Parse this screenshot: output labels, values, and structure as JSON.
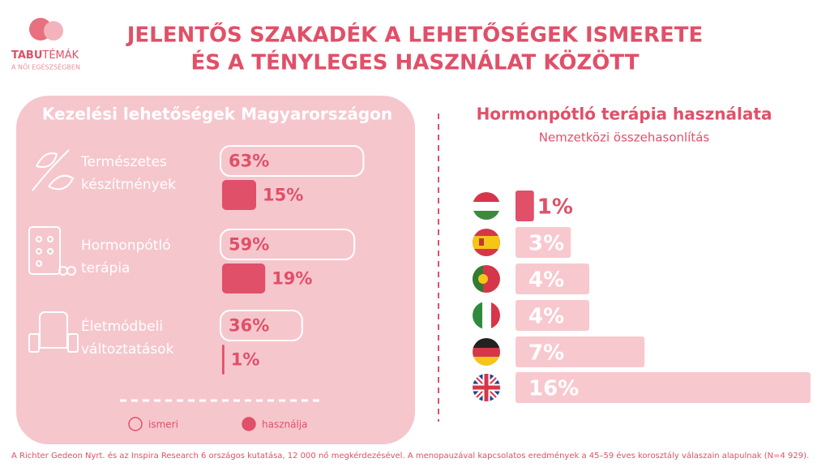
{
  "logo": {
    "brand_bold": "TABU",
    "brand_light": "TÉMÁK",
    "tagline": "A NŐI EGÉSZSÉGBEN"
  },
  "title": [
    "JELENTŐS SZAKADÉK A LEHETŐSÉGEK ISMERETE",
    "ÉS A TÉNYLEGES HASZNÁLAT KÖZÖTT"
  ],
  "chart_data": [
    {
      "type": "bar",
      "orientation": "horizontal",
      "title": "Kezelési lehetőségek Magyarországon",
      "categories": [
        "Természetes készítmények",
        "Hormonpótló terápia",
        "Életmódbeli változtatások"
      ],
      "series": [
        {
          "name": "ismeri",
          "color": "#ffffff",
          "values": [
            63,
            59,
            36
          ],
          "value_labels": [
            "63%",
            "59%",
            "36%"
          ]
        },
        {
          "name": "használja",
          "color": "#e05068",
          "values": [
            15,
            19,
            1
          ],
          "value_labels": [
            "15%",
            "19%",
            "1%"
          ]
        }
      ]
    },
    {
      "type": "bar",
      "orientation": "horizontal",
      "title": "Hormonpótló terápia használata",
      "subtitle": "Nemzetközi összehasonlítás",
      "values": [
        1,
        3,
        4,
        4,
        7,
        16
      ],
      "value_labels": [
        "1%",
        "3%",
        "4%",
        "4%",
        "7%",
        "16%"
      ],
      "colors": [
        "#e05068",
        "#f8c8cf",
        "#f8c8cf",
        "#f8c8cf",
        "#f8c8cf",
        "#f8c8cf"
      ]
    }
  ],
  "footer": "A Richter Gedeon Nyrt. és az Inspira Research 6 országos kutatása, 12 000 nő megkérdezésével. A menopauzával kapcsolatos eredmények a 45–59 éves korosztály válaszain alapulnak (N=4 929)."
}
